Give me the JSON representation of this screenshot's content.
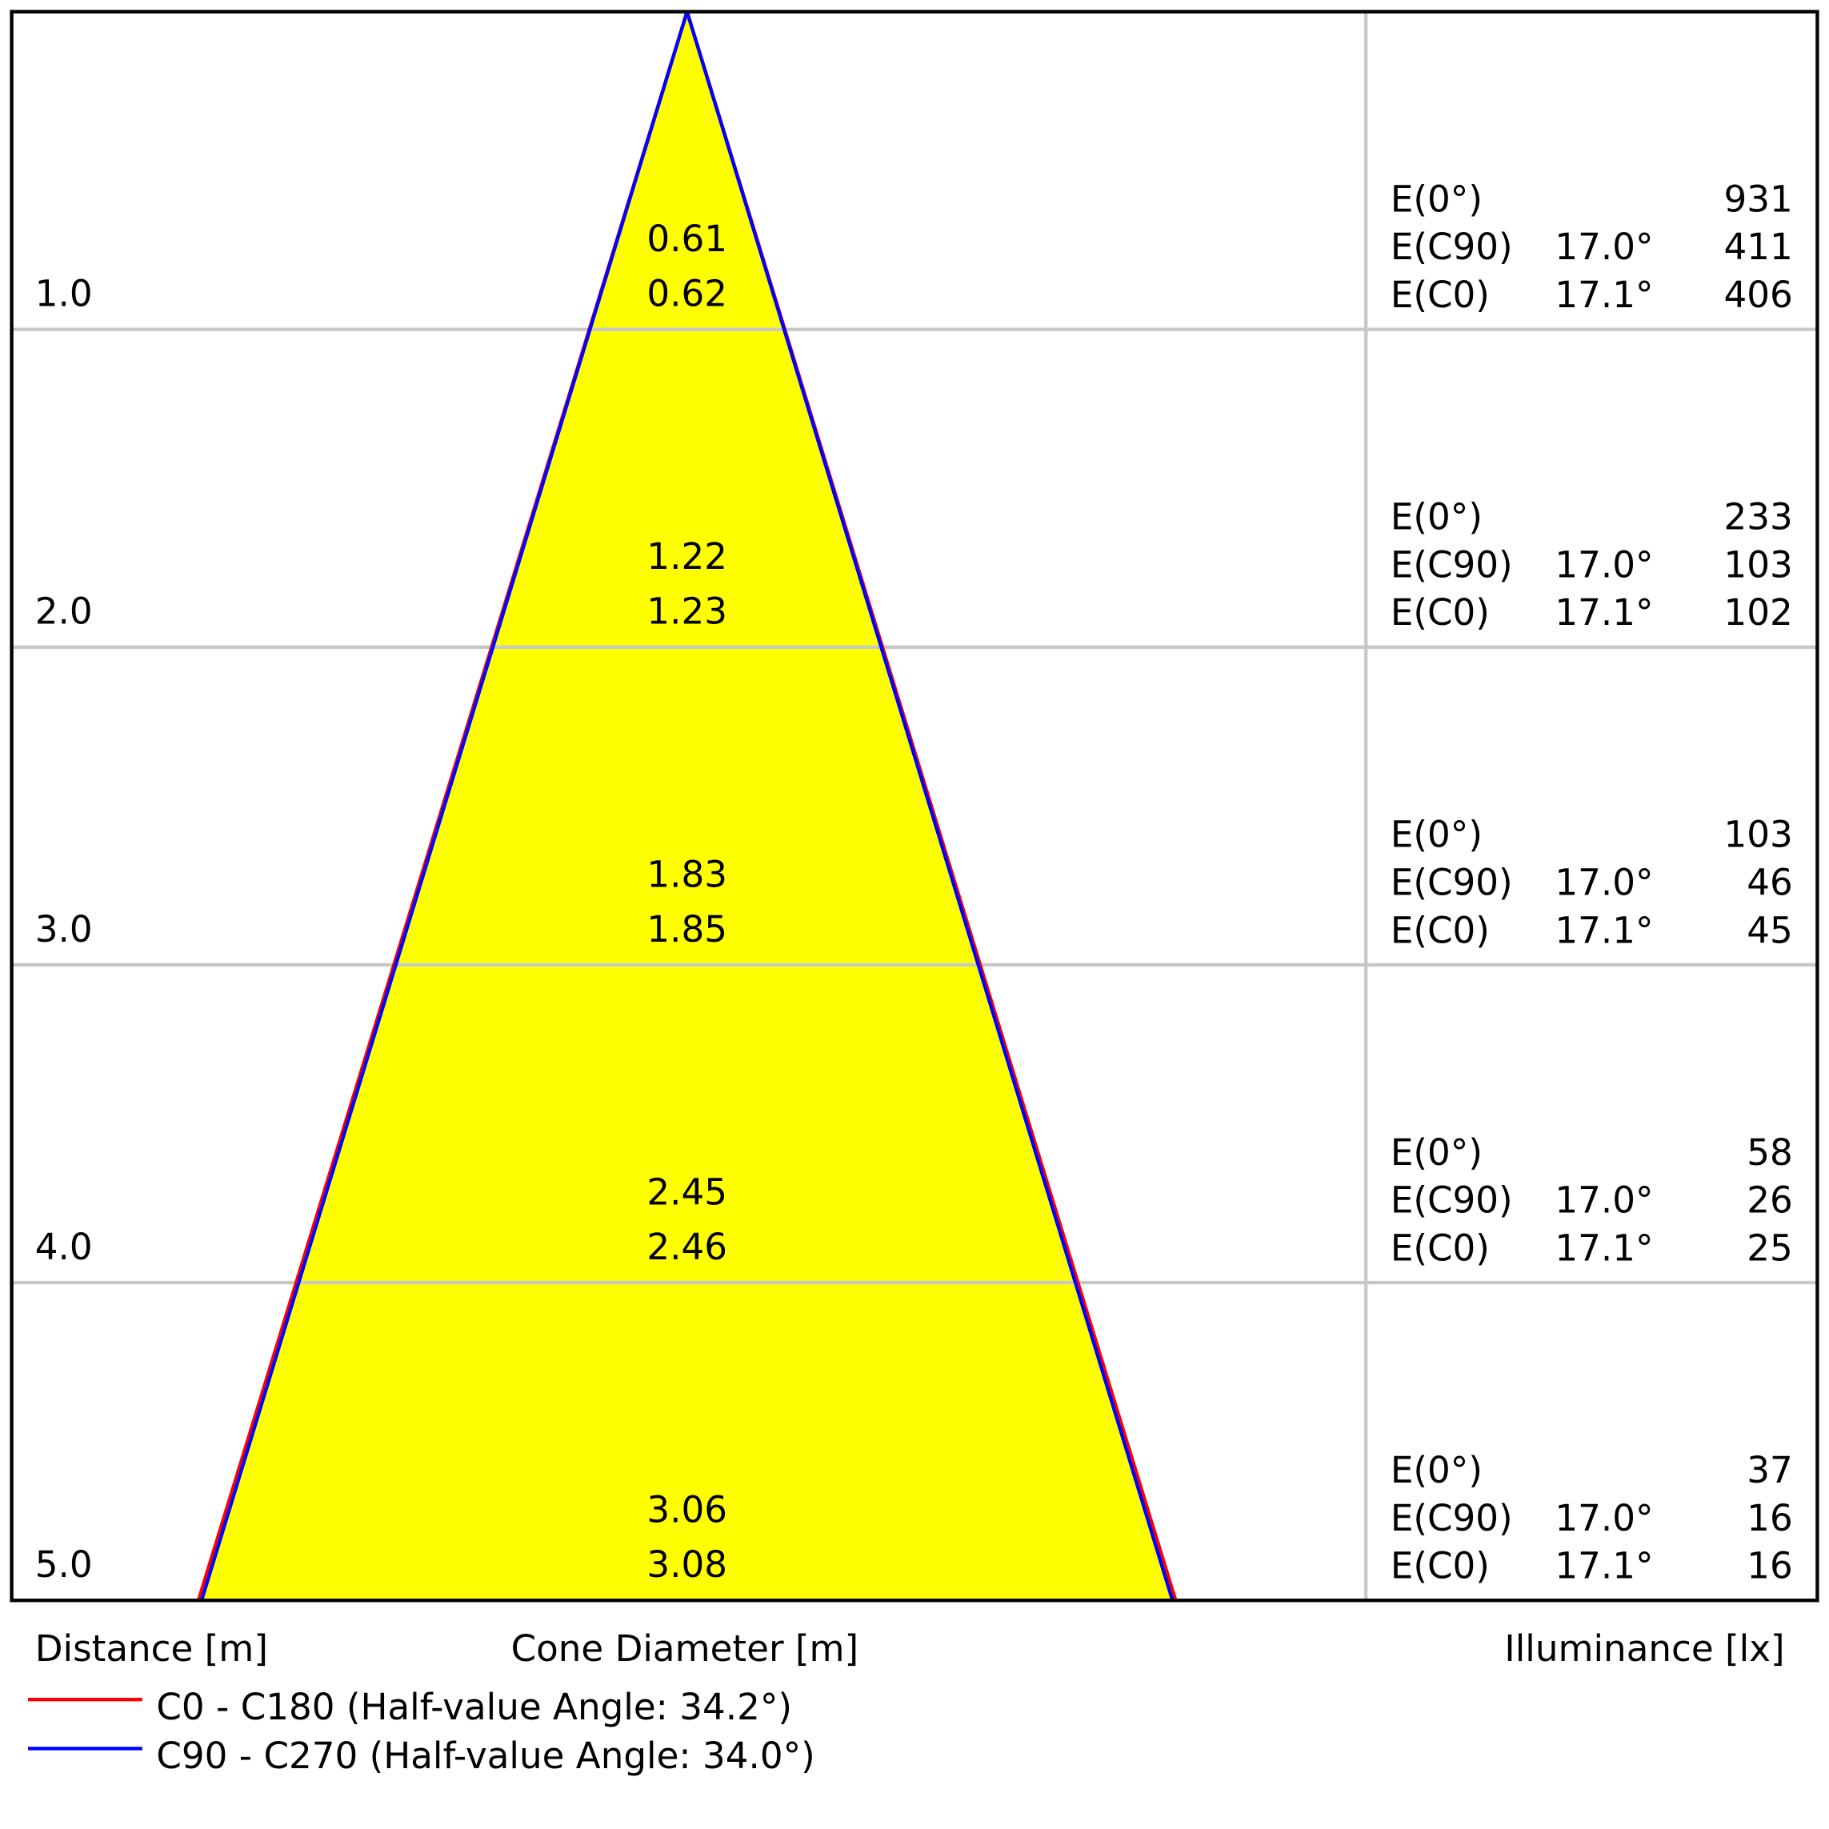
{
  "chart_data": {
    "type": "cone-diagram",
    "distance_label": "Distance [m]",
    "diameter_label": "Cone Diameter [m]",
    "illuminance_label": "Illuminance [lx]",
    "colors": {
      "fill": "#ffff00",
      "c0": "#ff0000",
      "c90": "#0000ff",
      "grid": "#c8c8c8"
    },
    "legend": [
      {
        "label": "C0 - C180 (Half-value Angle: 34.2°)",
        "color": "#ff0000"
      },
      {
        "label": "C90 - C270 (Half-value Angle: 34.0°)",
        "color": "#0000ff"
      }
    ],
    "rows": [
      {
        "distance": "1.0",
        "diam_c90": "0.61",
        "diam_c0": "0.62",
        "e0_label": "E(0°)",
        "e0": "931",
        "ec90_label": "E(C90)",
        "ec90_angle": "17.0°",
        "ec90": "411",
        "ec0_label": "E(C0)",
        "ec0_angle": "17.1°",
        "ec0": "406"
      },
      {
        "distance": "2.0",
        "diam_c90": "1.22",
        "diam_c0": "1.23",
        "e0_label": "E(0°)",
        "e0": "233",
        "ec90_label": "E(C90)",
        "ec90_angle": "17.0°",
        "ec90": "103",
        "ec0_label": "E(C0)",
        "ec0_angle": "17.1°",
        "ec0": "102"
      },
      {
        "distance": "3.0",
        "diam_c90": "1.83",
        "diam_c0": "1.85",
        "e0_label": "E(0°)",
        "e0": "103",
        "ec90_label": "E(C90)",
        "ec90_angle": "17.0°",
        "ec90": "46",
        "ec0_label": "E(C0)",
        "ec0_angle": "17.1°",
        "ec0": "45"
      },
      {
        "distance": "4.0",
        "diam_c90": "2.45",
        "diam_c0": "2.46",
        "e0_label": "E(0°)",
        "e0": "58",
        "ec90_label": "E(C90)",
        "ec90_angle": "17.0°",
        "ec90": "26",
        "ec0_label": "E(C0)",
        "ec0_angle": "17.1°",
        "ec0": "25"
      },
      {
        "distance": "5.0",
        "diam_c90": "3.06",
        "diam_c0": "3.08",
        "e0_label": "E(0°)",
        "e0": "37",
        "ec90_label": "E(C90)",
        "ec90_angle": "17.0°",
        "ec90": "16",
        "ec0_label": "E(C0)",
        "ec0_angle": "17.1°",
        "ec0": "16"
      }
    ]
  }
}
